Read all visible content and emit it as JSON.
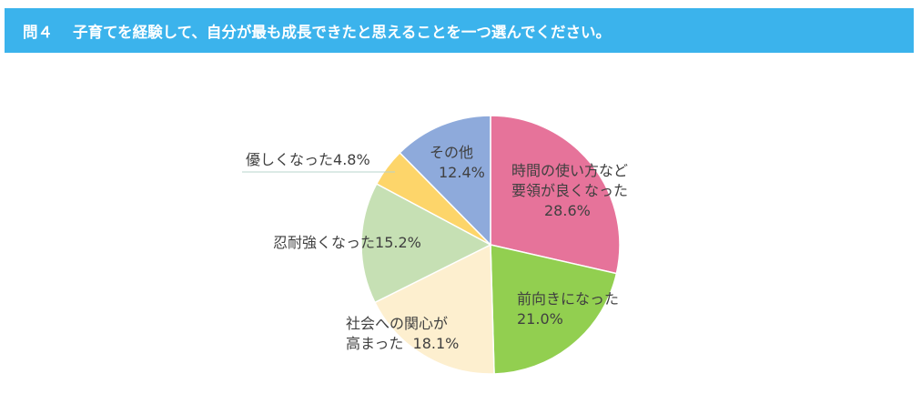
{
  "header": {
    "question_no": "問４",
    "question_text": "子育てを経験して、自分が最も成長できたと思えることを一つ選んでください。",
    "bg_color": "#3bb3ec"
  },
  "chart_data": {
    "type": "pie",
    "title": "問４　子育てを経験して、自分が最も成長できたと思えることを一つ選んでください。",
    "start_angle_deg": 0,
    "direction": "clockwise",
    "categories": [
      "時間の使い方など要領が良くなった",
      "前向きになった",
      "社会への関心が高まった",
      "忍耐強くなった",
      "優しくなった",
      "その他"
    ],
    "values": [
      28.6,
      21.0,
      18.1,
      15.2,
      4.8,
      12.4
    ],
    "colors": [
      "#e6739a",
      "#92cf50",
      "#fdefcf",
      "#c6e0b4",
      "#fdd56a",
      "#8eaadb"
    ],
    "unit": "%",
    "legend": "none (inline labels)"
  },
  "labels": {
    "time_line1": "時間の使い方など",
    "time_line2": "要領が良くなった",
    "time_pct": "28.6%",
    "positive_line1": "前向きになった",
    "positive_pct": "21.0%",
    "society_line1": "社会への関心が",
    "society_line2": "高まった",
    "society_pct": "18.1%",
    "patience": "忍耐強くなった",
    "patience_pct": "15.2%",
    "kind": "優しくなった",
    "kind_pct": "4.8%",
    "other": "その他",
    "other_pct": "12.4%"
  }
}
